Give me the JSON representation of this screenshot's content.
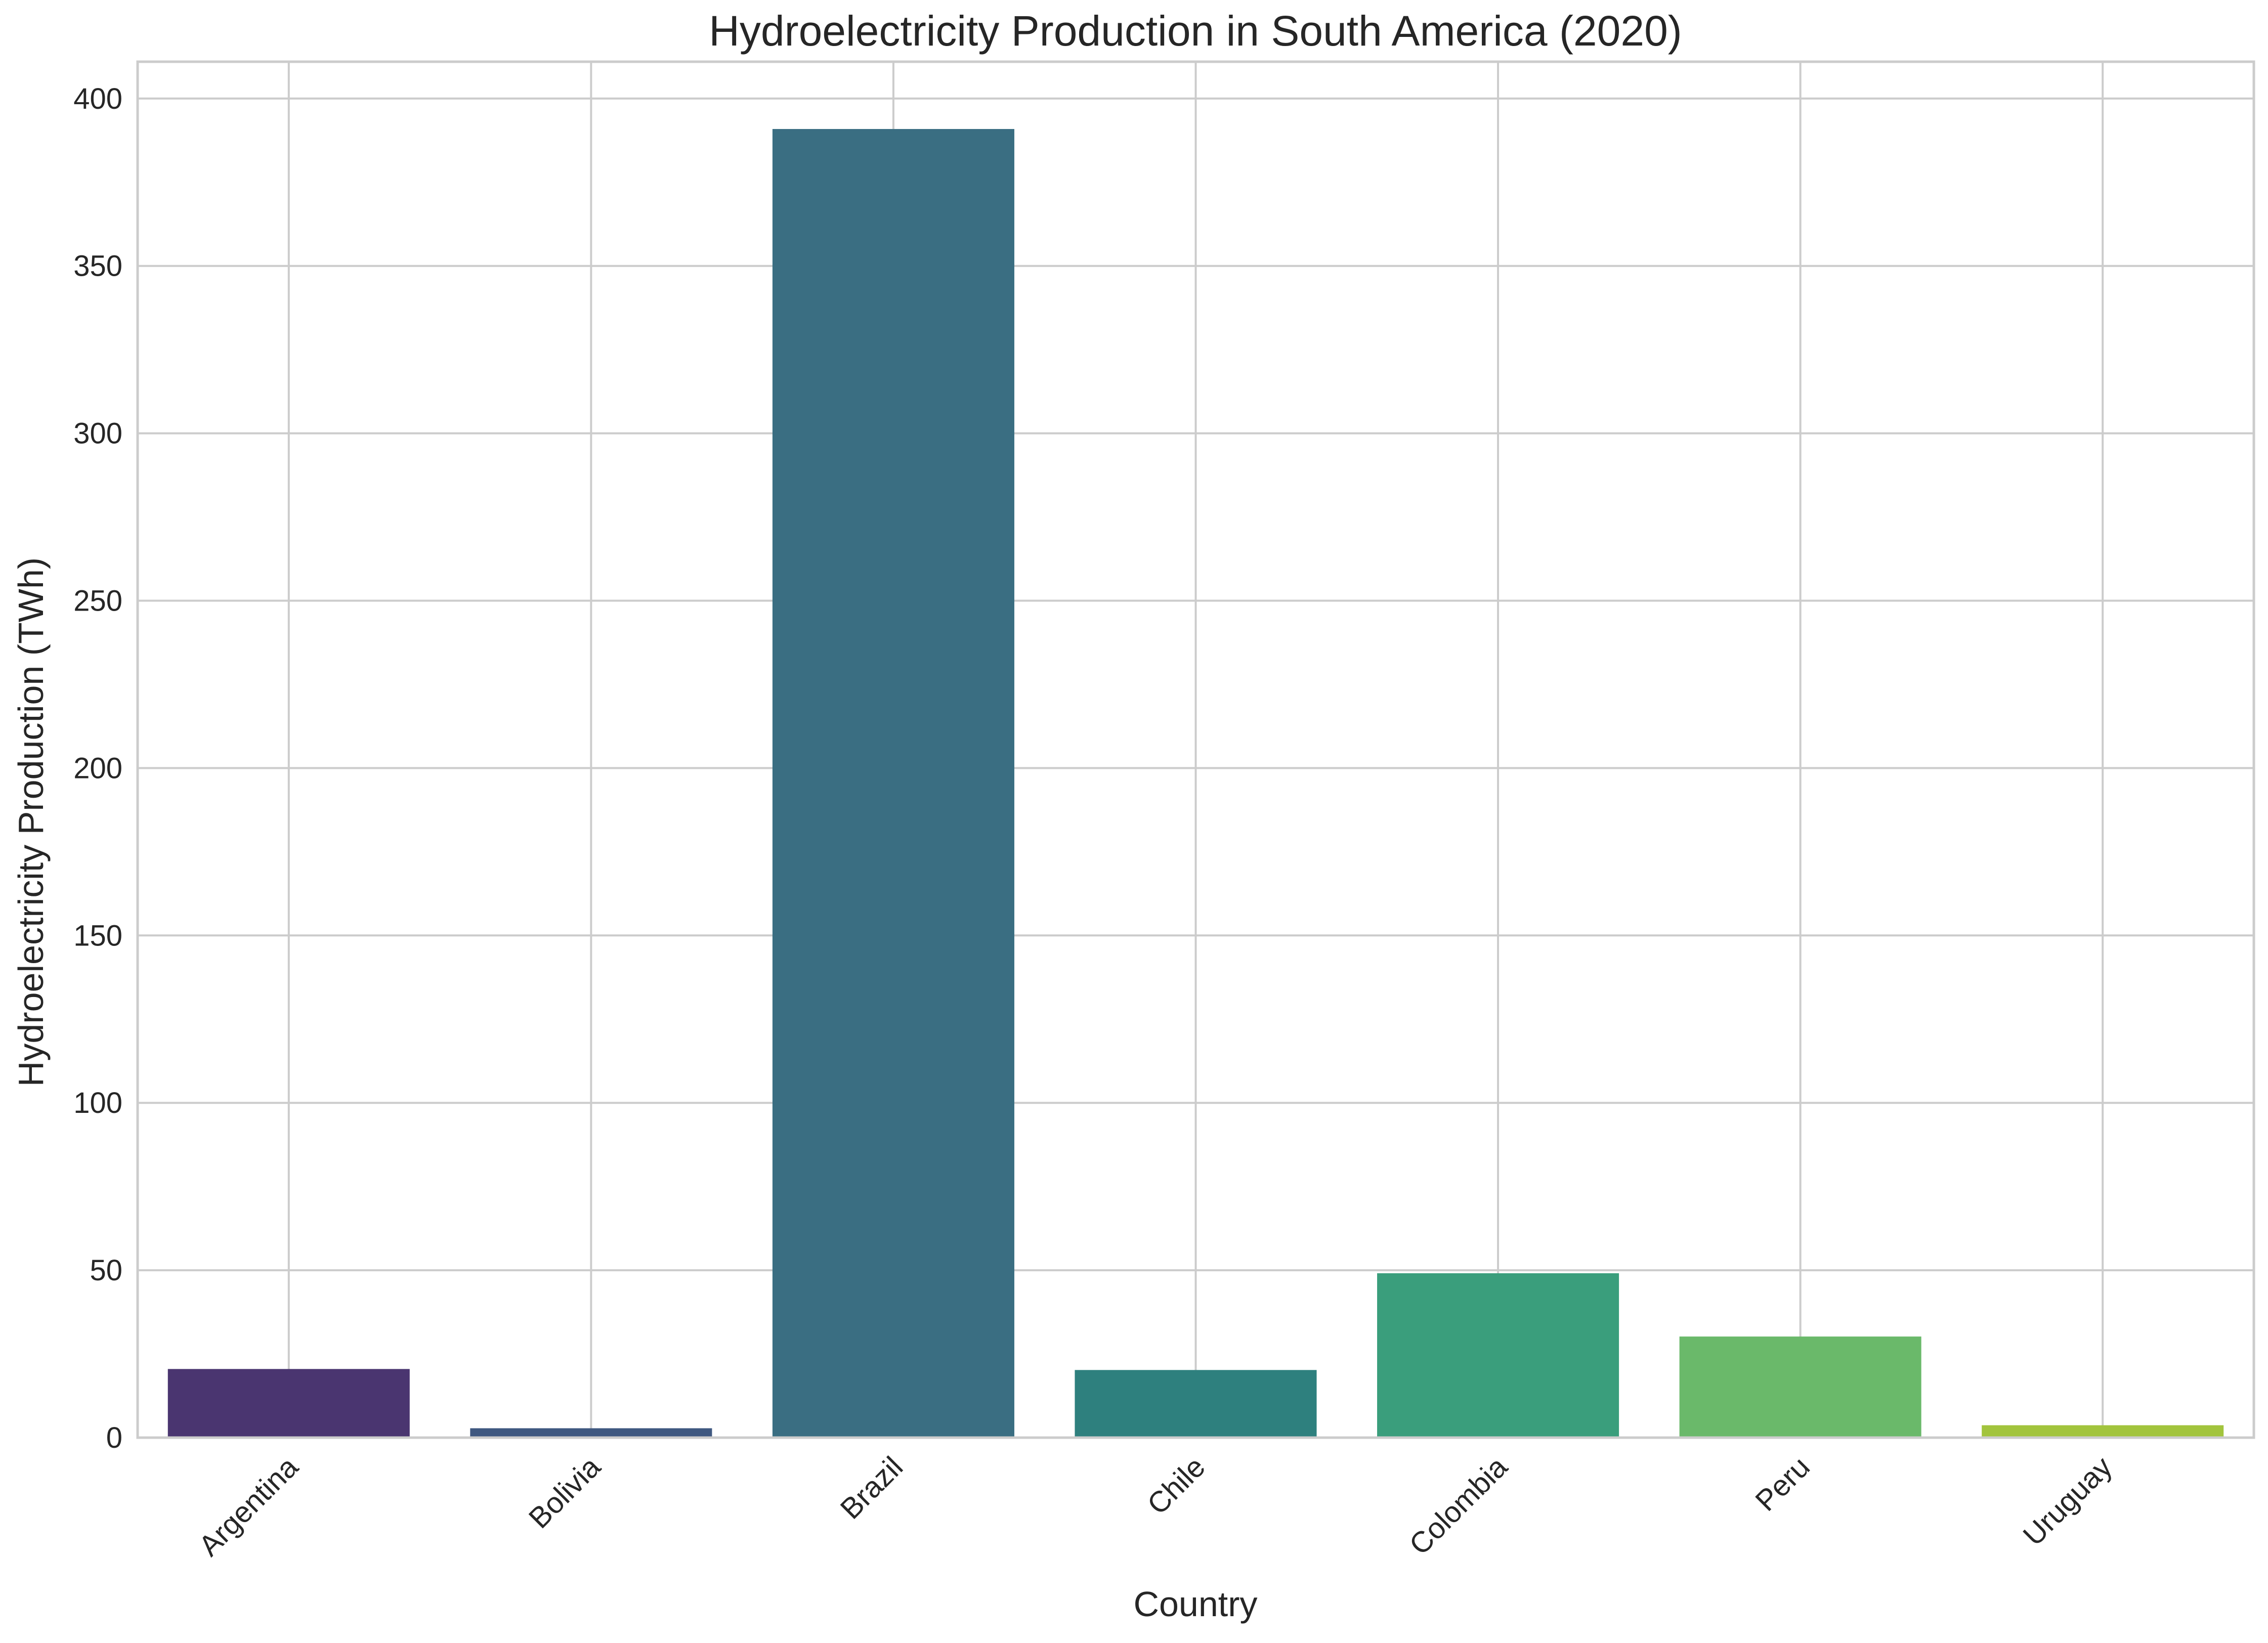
{
  "chart_data": {
    "type": "bar",
    "title": "Hydroelectricity Production in South America (2020)",
    "xlabel": "Country",
    "ylabel": "Hydroelectricity Production (TWh)",
    "categories": [
      "Argentina",
      "Bolivia",
      "Brazil",
      "Chile",
      "Colombia",
      "Peru",
      "Uruguay"
    ],
    "values": [
      20.5,
      2.8,
      390.9,
      20.2,
      49.1,
      30.2,
      3.7
    ],
    "colors": [
      "#4a3570",
      "#3f5880",
      "#3a6e82",
      "#2e807e",
      "#3a9e7c",
      "#6ab96a",
      "#a2c43d"
    ],
    "ylim": [
      0,
      411
    ],
    "yticks": [
      0,
      50,
      100,
      150,
      200,
      250,
      300,
      350,
      400
    ],
    "grid": true,
    "legend": "none"
  }
}
